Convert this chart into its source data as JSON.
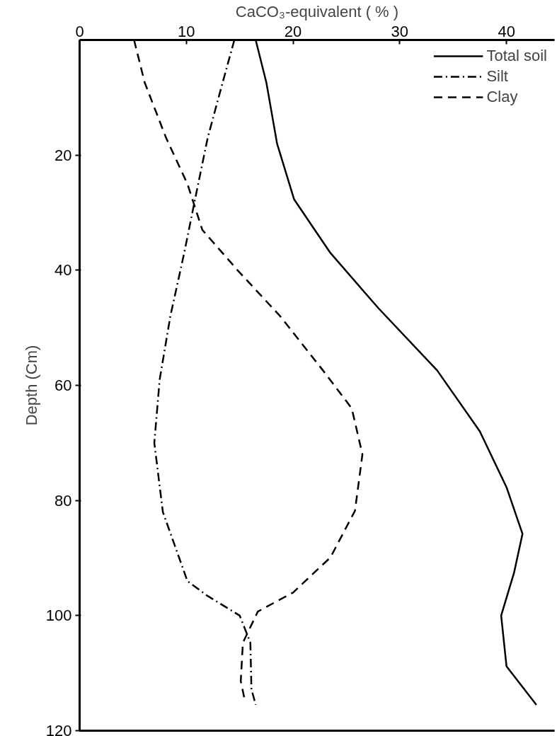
{
  "chart_data": {
    "type": "line",
    "xlabel": "CaCO₃-equivalent ( % )",
    "ylabel": "Depth (Cm)",
    "xlim": [
      0,
      44.5
    ],
    "xticks": [
      0,
      10,
      20,
      30,
      40
    ],
    "ylim": [
      120,
      0
    ],
    "yticks": [
      20,
      40,
      60,
      80,
      100,
      120
    ],
    "grid": false,
    "legend": "top right",
    "marker": "none",
    "series": [
      {
        "name": "Total soil",
        "color": "#000000",
        "line_style": "solid",
        "values": [
          0,
          7.4,
          18,
          27.7,
          37,
          46.6,
          57.4,
          68,
          77.7,
          85.8,
          92.6,
          100,
          108.8,
          115.5
        ],
        "x": [
          16.5,
          17.5,
          18.5,
          20.1,
          23.5,
          28,
          33.5,
          37.5,
          40,
          41.5,
          40.7,
          39.5,
          40,
          42.8
        ]
      },
      {
        "name": "Silt",
        "color": "#000000",
        "line_style": "dashdot",
        "values": [
          0,
          7.4,
          17,
          26,
          37,
          48,
          59,
          70,
          82,
          94,
          96.6,
          100,
          104.7,
          112.8,
          115.5
        ],
        "x": [
          14.5,
          13.4,
          12,
          11,
          9.8,
          8.5,
          7.5,
          7,
          7.8,
          10.1,
          12,
          15,
          16,
          16.1,
          16.5
        ]
      },
      {
        "name": "Clay",
        "color": "#000000",
        "line_style": "dashed",
        "values": [
          0,
          7.4,
          17,
          25,
          33,
          40,
          48,
          57.4,
          64,
          72,
          81.8,
          89.9,
          96,
          99.3,
          104.7,
          111.4,
          114.9
        ],
        "x": [
          5.1,
          6.1,
          8.1,
          10.1,
          11.5,
          14.8,
          18.8,
          22.8,
          25.5,
          26.5,
          25.8,
          23.5,
          20,
          16.7,
          15.3,
          15.1,
          15.5
        ]
      }
    ]
  }
}
